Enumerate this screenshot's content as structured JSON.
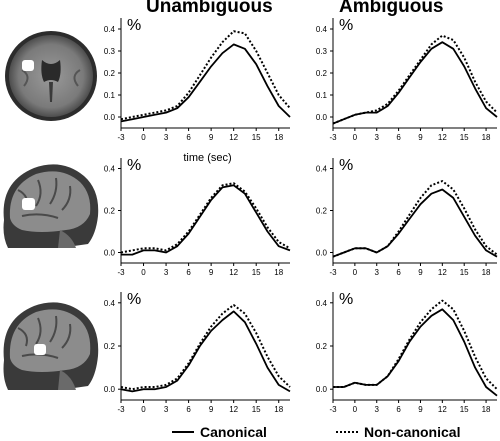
{
  "headers": {
    "left": "Unambiguous",
    "right": "Ambiguous"
  },
  "time_label": "time (sec)",
  "y_unit": "%",
  "legend": {
    "solid": "Canonical",
    "dotted": "Non-canonical"
  },
  "chart_data": [
    {
      "type": "line",
      "row": 1,
      "condition": "Unambiguous",
      "ylim": [
        -0.05,
        0.45
      ],
      "yticks": [
        0.0,
        0.1,
        0.2,
        0.3,
        0.4
      ],
      "xticks": [
        -3,
        0,
        3,
        6,
        9,
        12,
        15,
        18
      ],
      "x": [
        -3,
        -1.5,
        0,
        1.5,
        3,
        4.5,
        6,
        7.5,
        9,
        10.5,
        12,
        13.5,
        15,
        16.5,
        18,
        19.5
      ],
      "series": [
        {
          "name": "Canonical",
          "values": [
            -0.02,
            -0.01,
            0.0,
            0.01,
            0.02,
            0.04,
            0.09,
            0.16,
            0.23,
            0.29,
            0.33,
            0.31,
            0.24,
            0.14,
            0.05,
            0.0
          ]
        },
        {
          "name": "Non-canonical",
          "values": [
            -0.01,
            0.0,
            0.01,
            0.02,
            0.03,
            0.05,
            0.11,
            0.19,
            0.27,
            0.34,
            0.39,
            0.38,
            0.3,
            0.2,
            0.1,
            0.04
          ]
        }
      ]
    },
    {
      "type": "line",
      "row": 1,
      "condition": "Ambiguous",
      "ylim": [
        -0.05,
        0.45
      ],
      "yticks": [
        0.0,
        0.1,
        0.2,
        0.3,
        0.4
      ],
      "xticks": [
        -3,
        0,
        3,
        6,
        9,
        12,
        15,
        18
      ],
      "x": [
        -3,
        -1.5,
        0,
        1.5,
        3,
        4.5,
        6,
        7.5,
        9,
        10.5,
        12,
        13.5,
        15,
        16.5,
        18,
        19.5
      ],
      "series": [
        {
          "name": "Canonical",
          "values": [
            -0.03,
            -0.01,
            0.01,
            0.02,
            0.02,
            0.05,
            0.11,
            0.18,
            0.25,
            0.31,
            0.34,
            0.31,
            0.23,
            0.13,
            0.04,
            0.0
          ]
        },
        {
          "name": "Non-canonical",
          "values": [
            -0.03,
            -0.01,
            0.01,
            0.02,
            0.03,
            0.06,
            0.12,
            0.19,
            0.26,
            0.33,
            0.37,
            0.35,
            0.27,
            0.16,
            0.07,
            0.02
          ]
        }
      ]
    },
    {
      "type": "line",
      "row": 2,
      "condition": "Unambiguous",
      "ylim": [
        -0.05,
        0.45
      ],
      "yticks": [
        0.0,
        0.2,
        0.4
      ],
      "xticks": [
        -3,
        0,
        3,
        6,
        9,
        12,
        15,
        18
      ],
      "x": [
        -3,
        -1.5,
        0,
        1.5,
        3,
        4.5,
        6,
        7.5,
        9,
        10.5,
        12,
        13.5,
        15,
        16.5,
        18,
        19.5
      ],
      "series": [
        {
          "name": "Canonical",
          "values": [
            -0.01,
            -0.01,
            0.01,
            0.01,
            0.0,
            0.03,
            0.09,
            0.17,
            0.25,
            0.31,
            0.32,
            0.28,
            0.19,
            0.1,
            0.03,
            0.01
          ]
        },
        {
          "name": "Non-canonical",
          "values": [
            0.0,
            0.01,
            0.02,
            0.02,
            0.01,
            0.04,
            0.1,
            0.18,
            0.26,
            0.32,
            0.33,
            0.29,
            0.21,
            0.12,
            0.05,
            0.02
          ]
        }
      ]
    },
    {
      "type": "line",
      "row": 2,
      "condition": "Ambiguous",
      "ylim": [
        -0.05,
        0.45
      ],
      "yticks": [
        0.0,
        0.2,
        0.4
      ],
      "xticks": [
        -3,
        0,
        3,
        6,
        9,
        12,
        15,
        18
      ],
      "x": [
        -3,
        -1.5,
        0,
        1.5,
        3,
        4.5,
        6,
        7.5,
        9,
        10.5,
        12,
        13.5,
        15,
        16.5,
        18,
        19.5
      ],
      "series": [
        {
          "name": "Canonical",
          "values": [
            -0.02,
            0.0,
            0.02,
            0.02,
            0.0,
            0.03,
            0.09,
            0.16,
            0.23,
            0.28,
            0.3,
            0.26,
            0.17,
            0.08,
            0.01,
            -0.02
          ]
        },
        {
          "name": "Non-canonical",
          "values": [
            -0.02,
            0.0,
            0.02,
            0.02,
            0.0,
            0.03,
            0.1,
            0.18,
            0.26,
            0.32,
            0.34,
            0.3,
            0.21,
            0.11,
            0.03,
            -0.01
          ]
        }
      ]
    },
    {
      "type": "line",
      "row": 3,
      "condition": "Unambiguous",
      "ylim": [
        -0.05,
        0.45
      ],
      "yticks": [
        0.0,
        0.2,
        0.4
      ],
      "xticks": [
        -3,
        0,
        3,
        6,
        9,
        12,
        15,
        18
      ],
      "x": [
        -3,
        -1.5,
        0,
        1.5,
        3,
        4.5,
        6,
        7.5,
        9,
        10.5,
        12,
        13.5,
        15,
        16.5,
        18,
        19.5
      ],
      "series": [
        {
          "name": "Canonical",
          "values": [
            0.0,
            -0.01,
            0.0,
            0.0,
            0.01,
            0.04,
            0.11,
            0.2,
            0.27,
            0.32,
            0.36,
            0.31,
            0.21,
            0.1,
            0.02,
            -0.01
          ]
        },
        {
          "name": "Non-canonical",
          "values": [
            0.01,
            0.0,
            0.01,
            0.01,
            0.02,
            0.05,
            0.12,
            0.21,
            0.29,
            0.35,
            0.39,
            0.35,
            0.26,
            0.15,
            0.06,
            0.01
          ]
        }
      ]
    },
    {
      "type": "line",
      "row": 3,
      "condition": "Ambiguous",
      "ylim": [
        -0.05,
        0.45
      ],
      "yticks": [
        0.0,
        0.2,
        0.4
      ],
      "xticks": [
        -3,
        0,
        3,
        6,
        9,
        12,
        15,
        18
      ],
      "x": [
        -3,
        -1.5,
        0,
        1.5,
        3,
        4.5,
        6,
        7.5,
        9,
        10.5,
        12,
        13.5,
        15,
        16.5,
        18,
        19.5
      ],
      "series": [
        {
          "name": "Canonical",
          "values": [
            0.01,
            0.01,
            0.03,
            0.02,
            0.02,
            0.06,
            0.13,
            0.22,
            0.29,
            0.34,
            0.37,
            0.32,
            0.22,
            0.1,
            0.01,
            -0.03
          ]
        },
        {
          "name": "Non-canonical",
          "values": [
            0.01,
            0.01,
            0.03,
            0.02,
            0.02,
            0.06,
            0.14,
            0.23,
            0.31,
            0.37,
            0.41,
            0.37,
            0.27,
            0.15,
            0.05,
            0.0
          ]
        }
      ]
    }
  ]
}
